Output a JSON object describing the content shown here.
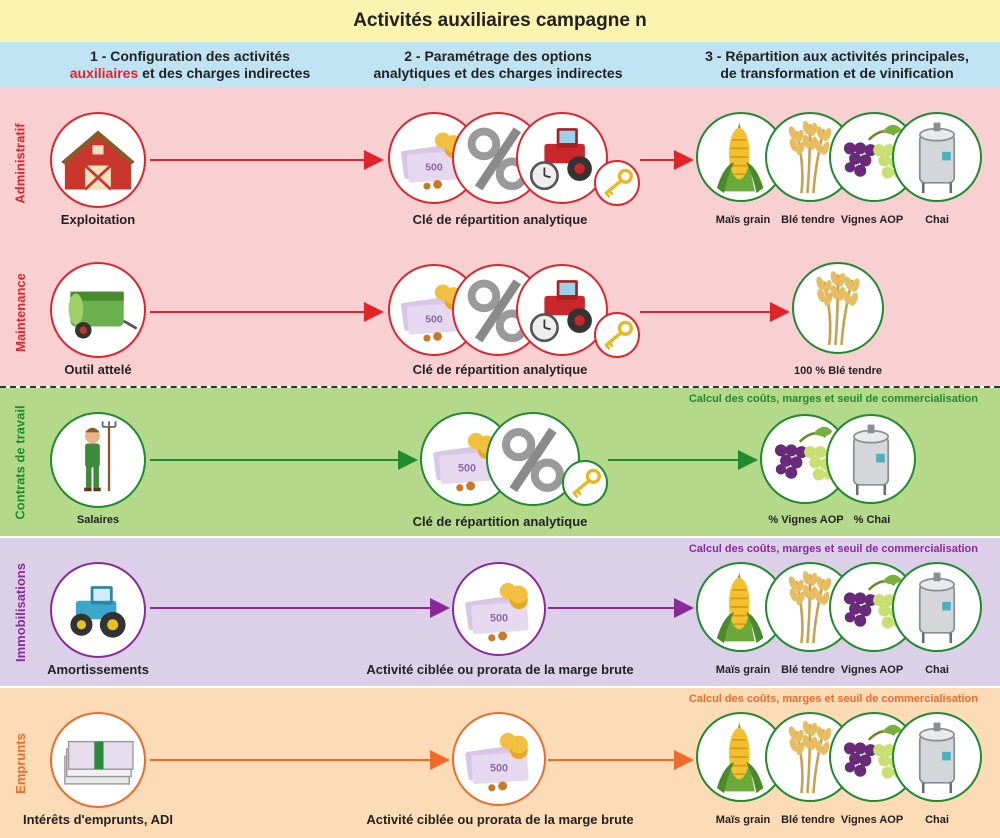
{
  "title": "Activités auxiliaires campagne n",
  "steps": {
    "s1_line1": "1 - Configuration des activités",
    "s1_line2_highlight": "auxiliaires",
    "s1_line2_rest": " et des charges indirectes",
    "s2_line1": "2 - Paramétrage des options",
    "s2_line2": "analytiques et des charges indirectes",
    "s3_line1": "3 - Répartition aux activités principales,",
    "s3_line2": "de transformation et de vinification"
  },
  "rows": {
    "administratif": {
      "label": "Administratif",
      "source": "Exploitation",
      "mid": "Clé de répartition analytique",
      "targets": [
        "Maïs grain",
        "Blé tendre",
        "Vignes AOP",
        "Chai"
      ]
    },
    "maintenance": {
      "label": "Maintenance",
      "source": "Outil attelé",
      "mid": "Clé de répartition analytique",
      "target": "100 % Blé tendre"
    },
    "contrats": {
      "label": "Contrats de travail",
      "source": "Salaires",
      "mid": "Clé de répartition analytique",
      "targets": [
        "% Vignes AOP",
        "% Chai"
      ],
      "calc": "Calcul des coûts, marges et seuil de commercialisation"
    },
    "immobilisations": {
      "label": "Immobilisations",
      "source": "Amortissements",
      "mid": "Activité ciblée ou prorata de la marge brute",
      "targets": [
        "Maïs grain",
        "Blé tendre",
        "Vignes AOP",
        "Chai"
      ],
      "calc": "Calcul des coûts, marges et seuil de commercialisation"
    },
    "emprunts": {
      "label": "Emprunts",
      "source": "Intérêts d'emprunts, ADI",
      "mid": "Activité ciblée ou prorata de la marge brute",
      "targets": [
        "Maïs grain",
        "Blé tendre",
        "Vignes AOP",
        "Chai"
      ],
      "calc": "Calcul des coûts, marges et seuil de commercialisation"
    }
  },
  "colors": {
    "red": "#e0242a",
    "green": "#1f8a2e",
    "purple": "#8a2a9a",
    "orange": "#f06a2a",
    "admin_bg": "#f8d0d2",
    "green_bg": "#b5d98a",
    "purple_bg": "#dcd0e8",
    "orange_bg": "#fbdcb6"
  },
  "icons": [
    "barn-icon",
    "baler-icon",
    "farmer-icon",
    "tractor-icon",
    "banknotes-icon",
    "money-icon",
    "percent-icon",
    "tractor-clock-icon",
    "key-icon",
    "corn-icon",
    "wheat-icon",
    "grapes-icon",
    "tank-icon"
  ]
}
